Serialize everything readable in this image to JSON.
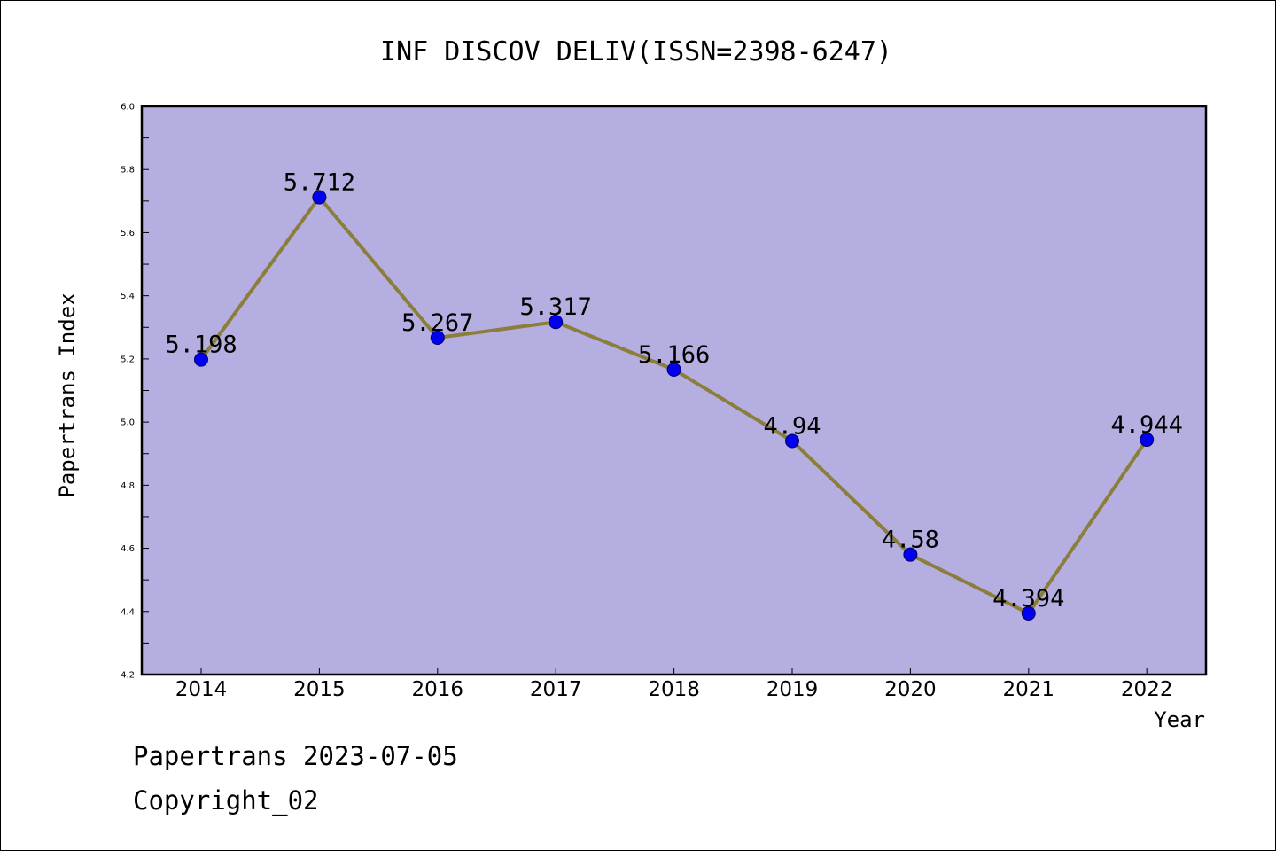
{
  "chart_data": {
    "type": "line",
    "title": "INF DISCOV DELIV(ISSN=2398-6247)",
    "xlabel": "Year",
    "ylabel": "Papertrans Index",
    "categories": [
      "2014",
      "2015",
      "2016",
      "2017",
      "2018",
      "2019",
      "2020",
      "2021",
      "2022"
    ],
    "values": [
      5.198,
      5.712,
      5.267,
      5.317,
      5.166,
      4.94,
      4.58,
      4.394,
      4.944
    ],
    "data_labels": [
      "5.198",
      "5.712",
      "5.267",
      "5.317",
      "5.166",
      "4.94",
      "4.58",
      "4.394",
      "4.944"
    ],
    "ylim": [
      4.2,
      6.0
    ],
    "yticks": [
      "4.2",
      "4.4",
      "4.6",
      "4.8",
      "5.0",
      "5.2",
      "5.4",
      "5.6",
      "5.8",
      "6.0"
    ],
    "grid": false,
    "legend": "none",
    "colors": {
      "plot_background": "#b5aee1",
      "line": "#8b7d3a",
      "marker": "#0000ee"
    }
  },
  "footer": {
    "line1": "Papertrans 2023-07-05",
    "line2": "Copyright_02"
  }
}
